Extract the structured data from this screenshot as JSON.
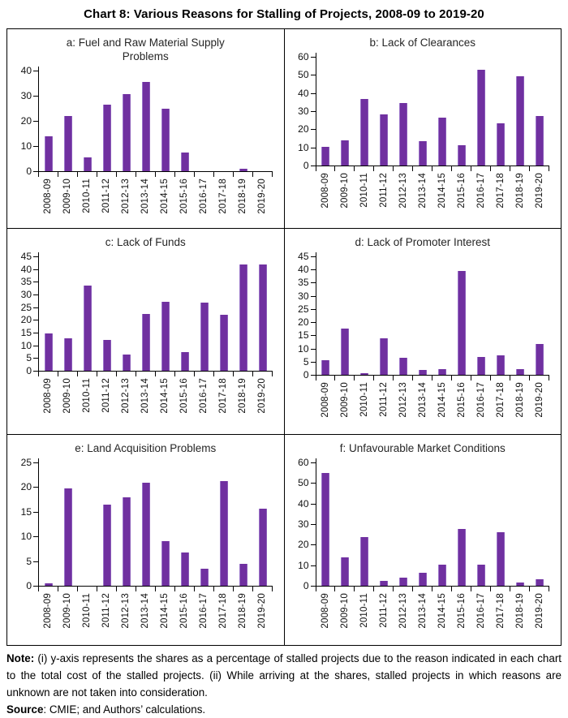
{
  "figure_title": "Chart 8: Various Reasons for Stalling of Projects, 2008-09 to 2019-20",
  "colors": {
    "bar": "#7030A0",
    "axis": "#000000",
    "panel_border": "#000000",
    "title_text": "#262626"
  },
  "chart_data": [
    {
      "id": "a",
      "type": "bar",
      "title": "a: Fuel and Raw Material Supply Problems",
      "categories": [
        "2008-09",
        "2009-10",
        "2010-11",
        "2011-12",
        "2012-13",
        "2013-14",
        "2014-15",
        "2015-16",
        "2016-17",
        "2017-18",
        "2018-19",
        "2019-20"
      ],
      "values": [
        14.0,
        21.9,
        5.4,
        26.6,
        30.7,
        35.6,
        25.0,
        7.5,
        0,
        0,
        0.9,
        0
      ],
      "ylim": [
        0,
        40
      ],
      "yticks": [
        0,
        10,
        20,
        30,
        40
      ],
      "grid": false,
      "legend": "none"
    },
    {
      "id": "b",
      "type": "bar",
      "title": "b: Lack of Clearances",
      "categories": [
        "2008-09",
        "2009-10",
        "2010-11",
        "2011-12",
        "2012-13",
        "2013-14",
        "2014-15",
        "2015-16",
        "2016-17",
        "2017-18",
        "2018-19",
        "2019-20"
      ],
      "values": [
        10.4,
        14.1,
        36.7,
        28.1,
        34.6,
        13.4,
        26.5,
        11.2,
        52.7,
        23.1,
        49.3,
        27.5
      ],
      "ylim": [
        0,
        60
      ],
      "yticks": [
        0,
        10,
        20,
        30,
        40,
        50,
        60
      ],
      "grid": false,
      "legend": "none"
    },
    {
      "id": "c",
      "type": "bar",
      "title": "c: Lack of Funds",
      "categories": [
        "2008-09",
        "2009-10",
        "2010-11",
        "2011-12",
        "2012-13",
        "2013-14",
        "2014-15",
        "2015-16",
        "2016-17",
        "2017-18",
        "2018-19",
        "2019-20"
      ],
      "values": [
        14.8,
        12.8,
        33.6,
        12.1,
        6.4,
        22.2,
        27.1,
        7.4,
        26.7,
        21.9,
        41.7,
        41.9
      ],
      "ylim": [
        0,
        45
      ],
      "yticks": [
        0,
        5,
        10,
        15,
        20,
        25,
        30,
        35,
        40,
        45
      ],
      "grid": false,
      "legend": "none"
    },
    {
      "id": "d",
      "type": "bar",
      "title": "d: Lack of Promoter Interest",
      "categories": [
        "2008-09",
        "2009-10",
        "2010-11",
        "2011-12",
        "2012-13",
        "2013-14",
        "2014-15",
        "2015-16",
        "2016-17",
        "2017-18",
        "2018-19",
        "2019-20"
      ],
      "values": [
        5.5,
        17.6,
        0.6,
        14.0,
        6.4,
        1.9,
        2.3,
        39.4,
        6.9,
        7.4,
        2.1,
        11.8
      ],
      "ylim": [
        0,
        45
      ],
      "yticks": [
        0,
        5,
        10,
        15,
        20,
        25,
        30,
        35,
        40,
        45
      ],
      "grid": false,
      "legend": "none"
    },
    {
      "id": "e",
      "type": "bar",
      "title": "e: Land Acquisition Problems",
      "categories": [
        "2008-09",
        "2009-10",
        "2010-11",
        "2011-12",
        "2012-13",
        "2013-14",
        "2014-15",
        "2015-16",
        "2016-17",
        "2017-18",
        "2018-19",
        "2019-20"
      ],
      "values": [
        0.5,
        19.8,
        0,
        16.5,
        17.9,
        20.9,
        9.0,
        6.8,
        3.5,
        21.3,
        4.5,
        15.7
      ],
      "ylim": [
        0,
        25
      ],
      "yticks": [
        0,
        5,
        10,
        15,
        20,
        25
      ],
      "grid": false,
      "legend": "none"
    },
    {
      "id": "f",
      "type": "bar",
      "title": "f: Unfavourable Market Conditions",
      "categories": [
        "2008-09",
        "2009-10",
        "2010-11",
        "2011-12",
        "2012-13",
        "2013-14",
        "2014-15",
        "2015-16",
        "2016-17",
        "2017-18",
        "2018-19",
        "2019-20"
      ],
      "values": [
        54.8,
        13.8,
        23.6,
        2.5,
        4.0,
        6.2,
        10.4,
        27.5,
        10.4,
        26.2,
        1.4,
        3.0
      ],
      "ylim": [
        0,
        60
      ],
      "yticks": [
        0,
        10,
        20,
        30,
        40,
        50,
        60
      ],
      "grid": false,
      "legend": "none"
    }
  ],
  "note": {
    "label": "Note:",
    "text": " (i) y-axis represents the shares as a percentage of stalled projects due to the reason indicated in each chart to the total cost of the stalled projects. (ii) While arriving at the shares, stalled projects in which reasons are unknown are not taken into consideration.",
    "source_label": "Source",
    "source_text": ": CMIE; and Authors’ calculations."
  }
}
